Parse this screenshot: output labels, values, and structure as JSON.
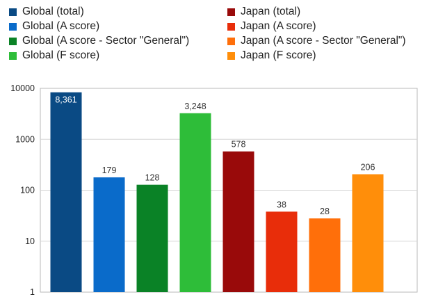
{
  "chart_data": {
    "type": "bar",
    "yscale": "log",
    "ylim": [
      1,
      10000
    ],
    "yticks": [
      "1",
      "10",
      "100",
      "1000",
      "10000"
    ],
    "grid": true,
    "legend_position": "top",
    "series": [
      {
        "name": "Global (total)",
        "value": 8361,
        "label": "8,361",
        "color": "#0a4a84"
      },
      {
        "name": "Global (A score)",
        "value": 179,
        "label": "179",
        "color": "#0a6bca"
      },
      {
        "name": "Global (A score - Sector \"General\")",
        "value": 128,
        "label": "128",
        "color": "#0a8226"
      },
      {
        "name": "Global (F score)",
        "value": 3248,
        "label": "3,248",
        "color": "#2ebd39"
      },
      {
        "name": "Japan (total)",
        "value": 578,
        "label": "578",
        "color": "#990a0a"
      },
      {
        "name": "Japan (A score)",
        "value": 38,
        "label": "38",
        "color": "#e82d0a"
      },
      {
        "name": "Japan (A score - Sector \"General\")",
        "value": 28,
        "label": "28",
        "color": "#ff6f0a"
      },
      {
        "name": "Japan (F score)",
        "value": 206,
        "label": "206",
        "color": "#ff8e0a"
      }
    ]
  }
}
